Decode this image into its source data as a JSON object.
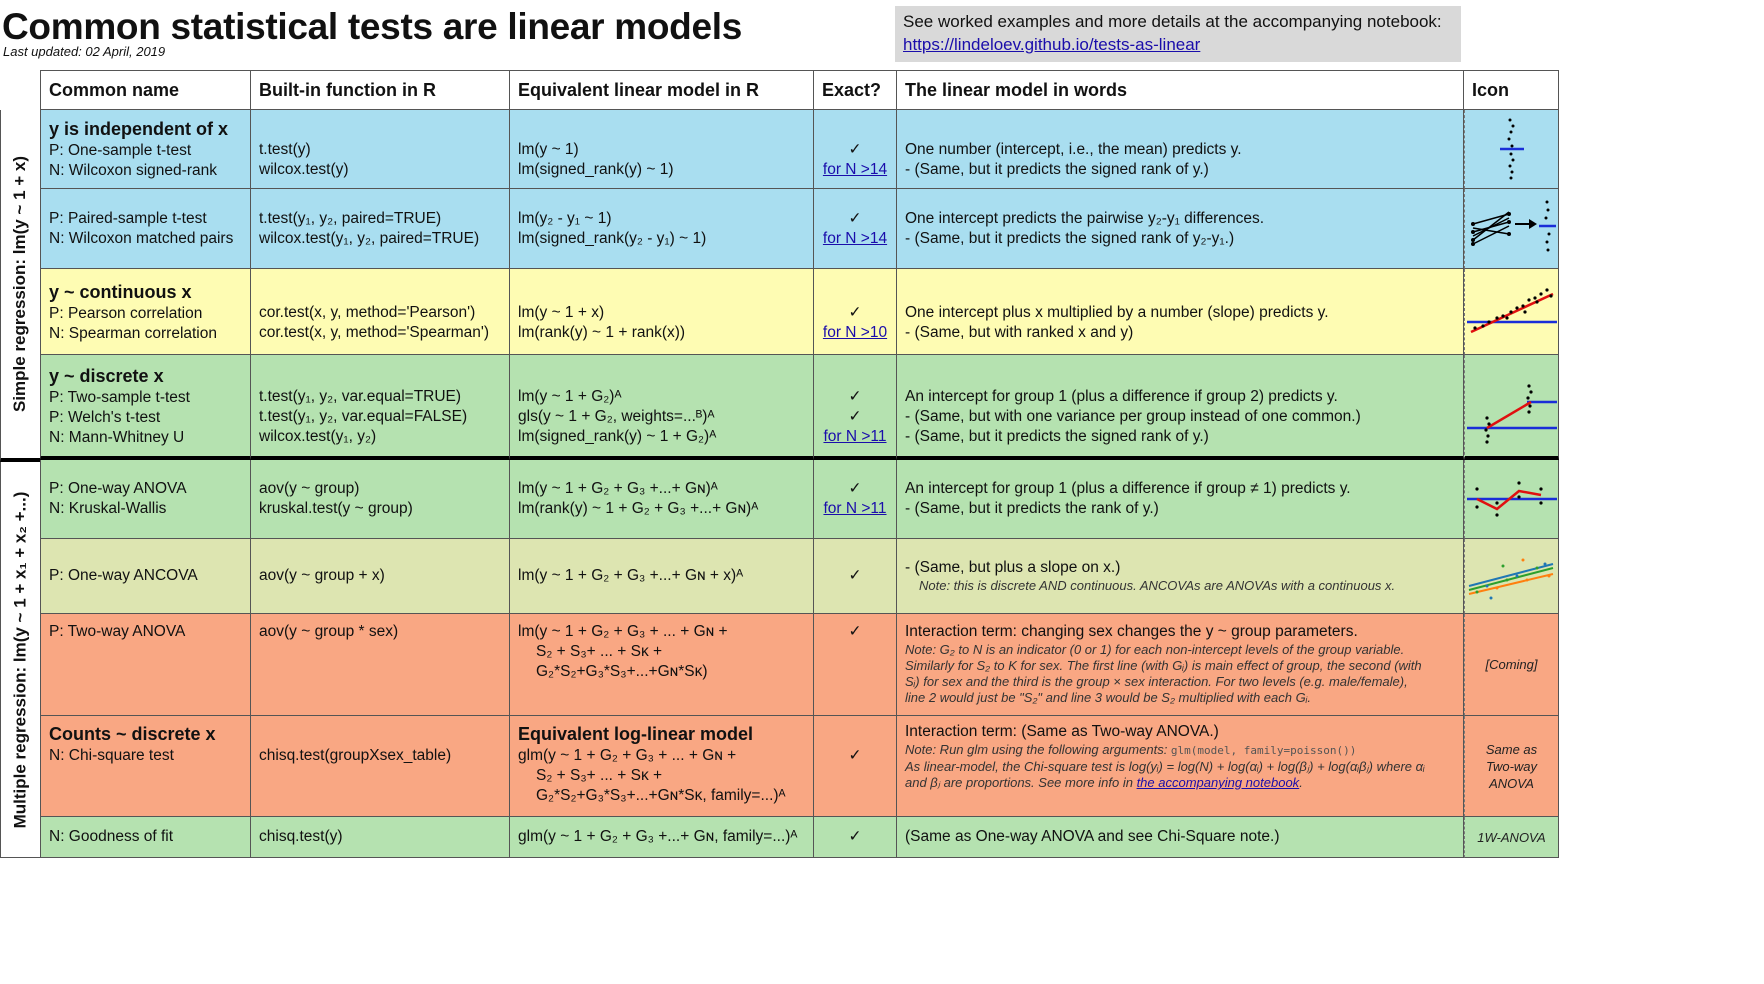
{
  "header": {
    "title": "Common statistical tests are linear models",
    "updated": "Last updated: 02 April, 2019",
    "note_prefix": "See worked examples and more details at the accompanying notebook: ",
    "note_link": "https://lindeloev.github.io/tests-as-linear"
  },
  "columns": [
    "Common name",
    "Built-in function in R",
    "Equivalent linear model in R",
    "Exact?",
    "The linear model in words",
    "Icon"
  ],
  "side_labels": {
    "simple": "Simple regression: lm(y ~ 1 + x)",
    "multiple": "Multiple regression: lm(y ~ 1 + x₁ + x₂ +...)"
  },
  "rows": {
    "r1": {
      "heading": "y is independent of x",
      "names": [
        "P: One-sample t-test",
        "N: Wilcoxon signed-rank"
      ],
      "funcs": [
        "t.test(y)",
        "wilcox.test(y)"
      ],
      "models": [
        "lm(y ~ 1)",
        "lm(signed_rank(y) ~ 1)"
      ],
      "exact": [
        "✓",
        "for N >14"
      ],
      "words": [
        "One number (intercept, i.e., the mean) predicts y.",
        " - (Same, but it predicts the signed rank of y.)"
      ]
    },
    "r2": {
      "names": [
        "P: Paired-sample t-test",
        "N: Wilcoxon matched pairs"
      ],
      "funcs": [
        "t.test(y₁, y₂, paired=TRUE)",
        "wilcox.test(y₁, y₂, paired=TRUE)"
      ],
      "models": [
        "lm(y₂ - y₁ ~ 1)",
        "lm(signed_rank(y₂ - y₁) ~ 1)"
      ],
      "exact": [
        "✓",
        "for N >14"
      ],
      "words": [
        "One intercept predicts the pairwise y₂-y₁ differences.",
        " - (Same, but it predicts the signed rank of y₂-y₁.)"
      ]
    },
    "r3": {
      "heading": "y ~ continuous x",
      "names": [
        "P: Pearson correlation",
        "N: Spearman correlation"
      ],
      "funcs": [
        "cor.test(x, y, method='Pearson')",
        "cor.test(x, y, method='Spearman')"
      ],
      "models": [
        "lm(y ~ 1 + x)",
        "lm(rank(y) ~ 1 + rank(x))"
      ],
      "exact": [
        "✓",
        "for N >10"
      ],
      "words": [
        "One intercept plus x multiplied by a number (slope) predicts y.",
        " - (Same, but with ranked x and y)"
      ]
    },
    "r4": {
      "heading": "y ~ discrete x",
      "names": [
        "P: Two-sample t-test",
        "P: Welch's t-test",
        "N: Mann-Whitney U"
      ],
      "funcs": [
        "t.test(y₁, y₂, var.equal=TRUE)",
        "t.test(y₁, y₂, var.equal=FALSE)",
        "wilcox.test(y₁, y₂)"
      ],
      "models": [
        "lm(y ~ 1 + G₂)ᴬ",
        "gls(y ~ 1 + G₂, weights=...ᴮ)ᴬ",
        "lm(signed_rank(y) ~ 1 + G₂)ᴬ"
      ],
      "exact": [
        "✓",
        "✓",
        "for N >11"
      ],
      "words": [
        "An intercept for group 1 (plus a difference if group 2) predicts y.",
        " - (Same, but with one variance per group instead of one common.)",
        " - (Same, but it predicts the signed rank of y.)"
      ]
    },
    "r5": {
      "names": [
        "P: One-way ANOVA",
        "N: Kruskal-Wallis"
      ],
      "funcs": [
        "aov(y ~ group)",
        "kruskal.test(y ~ group)"
      ],
      "models": [
        "lm(y ~ 1 + G₂ + G₃ +...+ Gɴ)ᴬ",
        "lm(rank(y) ~ 1 + G₂ + G₃ +...+ Gɴ)ᴬ"
      ],
      "exact": [
        "✓",
        "for N >11"
      ],
      "words": [
        "An intercept for group 1 (plus a difference if group ≠ 1) predicts y.",
        " - (Same, but it predicts the rank of y.)"
      ]
    },
    "r6": {
      "names": [
        "P: One-way ANCOVA"
      ],
      "funcs": [
        "aov(y ~ group + x)"
      ],
      "models": [
        "lm(y ~ 1 + G₂ + G₃ +...+ Gɴ + x)ᴬ"
      ],
      "exact": [
        "✓"
      ],
      "words": [
        "- (Same, but plus a slope on x.)"
      ],
      "note": "Note: this is discrete AND continuous. ANCOVAs are ANOVAs with a continuous x."
    },
    "r7": {
      "names": [
        "P: Two-way ANOVA"
      ],
      "funcs": [
        "aov(y ~ group * sex)"
      ],
      "models": [
        "lm(y ~ 1 + G₂ + G₃ + ... + Gɴ +",
        "S₂ + S₃+ ... + Sᴋ +",
        "G₂*S₂+G₃*S₃+...+Gɴ*Sᴋ)"
      ],
      "exact": [
        "✓"
      ],
      "words": [
        "Interaction term: changing sex changes the y ~ group parameters."
      ],
      "note_lines": [
        "Note: G₂ to N is an indicator (0 or 1) for each non-intercept levels of the group variable.",
        "Similarly for S₂ to K for sex. The first line (with Gᵢ) is main effect of group, the second (with",
        "Sᵢ) for sex and the third is the group × sex interaction. For two levels (e.g. male/female),",
        "line 2 would just be \"S₂\" and line 3 would be S₂ multiplied with each Gᵢ."
      ],
      "icon": "[Coming]"
    },
    "r8": {
      "heading": "Counts ~ discrete x",
      "names": [
        "N: Chi-square test"
      ],
      "funcs": [
        "chisq.test(groupXsex_table)"
      ],
      "model_heading": "Equivalent log-linear model",
      "models": [
        "glm(y ~ 1 + G₂ + G₃ + ... + Gɴ +",
        "S₂ + S₃+ ... + Sᴋ +",
        "G₂*S₂+G₃*S₃+...+Gɴ*Sᴋ, family=...)ᴬ"
      ],
      "exact": [
        "✓"
      ],
      "words": [
        "Interaction term: (Same as Two-way ANOVA.)"
      ],
      "note_lines": [
        "Note: Run glm using the following arguments: ",
        "glm(model, family=poisson())",
        "As linear-model, the Chi-square test is log(yᵢ) = log(N) + log(αᵢ) + log(βⱼ) + log(αᵢβⱼ) where αᵢ",
        "and βⱼ are proportions. See more info in ",
        "the accompanying notebook",
        "."
      ],
      "icon": [
        "Same as",
        "Two-way",
        "ANOVA"
      ]
    },
    "r9": {
      "names": [
        "N: Goodness of fit"
      ],
      "funcs": [
        "chisq.test(y)"
      ],
      "models": [
        "glm(y ~ 1 + G₂ + G₃ +...+ Gɴ, family=...)ᴬ"
      ],
      "exact": [
        "✓"
      ],
      "words": [
        "(Same as One-way ANOVA and see Chi-Square note.)"
      ],
      "icon": "1W-ANOVA"
    }
  },
  "colors": {
    "blue": "#a9def0",
    "yellow": "#fefcb3",
    "green": "#b5e2b0",
    "olive": "#dde5b1",
    "salmon": "#f9a783",
    "link": "#1a0dab"
  },
  "icons": [
    "one-sample-icon",
    "paired-samples-icon",
    "correlation-icon",
    "two-sample-icon",
    "anova-icon",
    "ancova-icon"
  ]
}
